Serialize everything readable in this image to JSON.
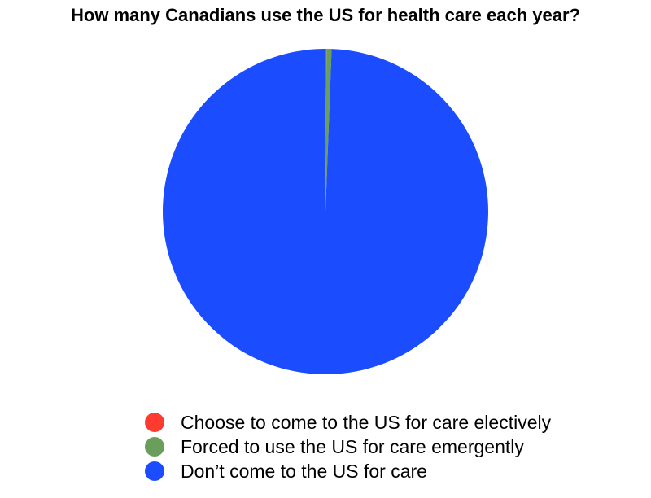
{
  "chart_data": {
    "type": "pie",
    "title": "How many Canadians use the US for health care each year?",
    "legend_position": "bottom",
    "series": [
      {
        "name": "Choose to come to the US for care electively",
        "value": 0.1,
        "color": "#ff3b30"
      },
      {
        "name": "Forced to use the US for care emergently",
        "value": 0.5,
        "color": "#6a9f5b"
      },
      {
        "name": "Don’t come to the US for care",
        "value": 99.4,
        "color": "#1b4dff"
      }
    ]
  }
}
